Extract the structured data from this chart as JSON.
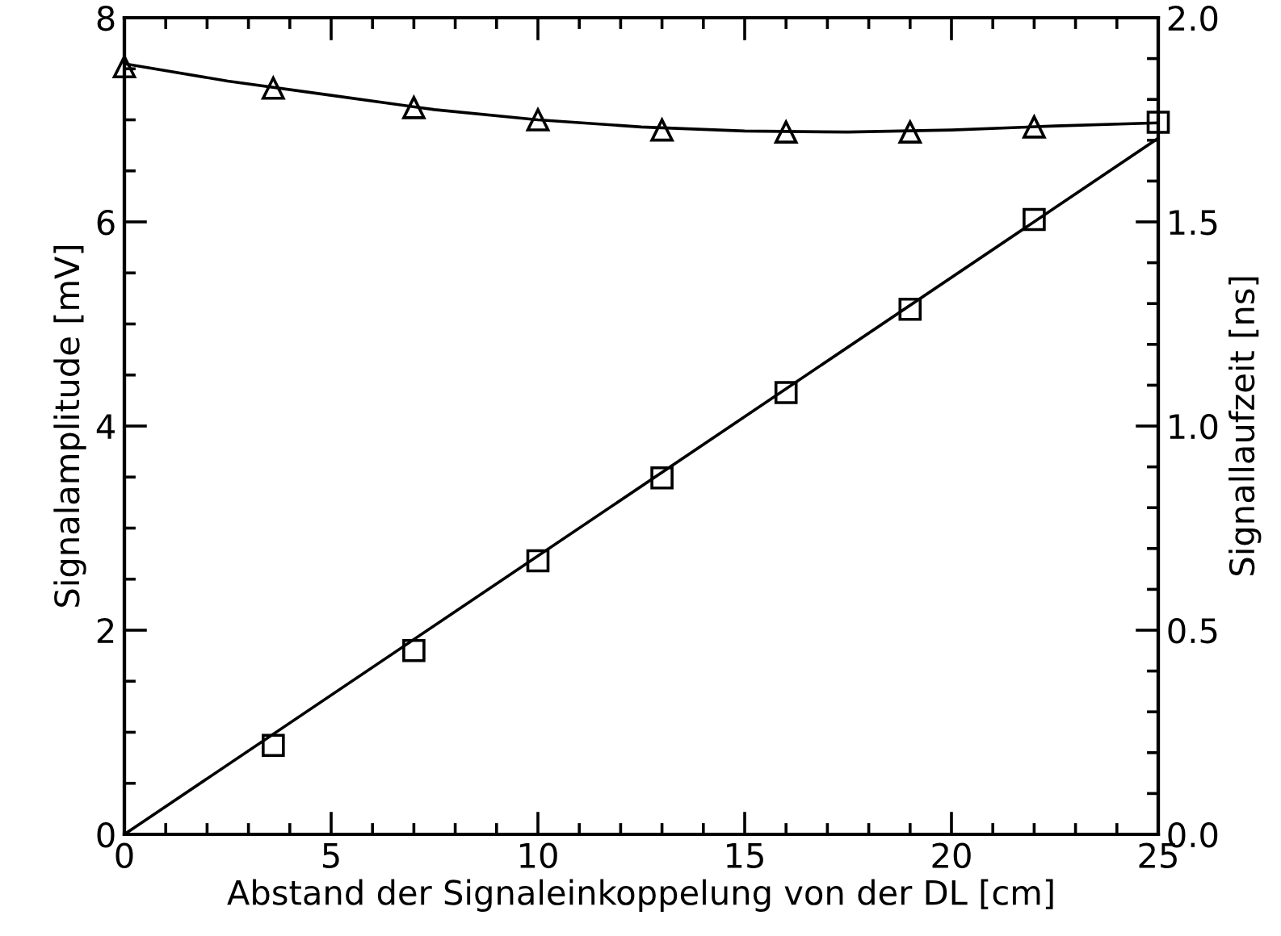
{
  "chart_data": {
    "type": "scatter",
    "xlabel": "Abstand der Signaleinkoppelung von der DL [cm]",
    "ylabel": "Signalamplitude [mV]",
    "y2label": "Signallaufzeit [ns]",
    "xlim": [
      0,
      25
    ],
    "xticks": [
      0,
      5,
      10,
      15,
      20,
      25
    ],
    "ylim": [
      0,
      8
    ],
    "yticks": [
      0,
      2,
      4,
      6,
      8
    ],
    "y2lim": [
      0,
      2
    ],
    "y2ticks": [
      {
        "value": 0,
        "label": "0.0"
      },
      {
        "value": 0.5,
        "label": "0.5"
      },
      {
        "value": 1,
        "label": "1.0"
      },
      {
        "value": 1.5,
        "label": "1.5"
      },
      {
        "value": 2,
        "label": "2.0"
      }
    ],
    "grid": false,
    "legend": false,
    "series": [
      {
        "color": "#000000",
        "marker": "triangle",
        "x": [
          0,
          3.6,
          7.0,
          10.0,
          13.0,
          16.0,
          19.0,
          22.0
        ],
        "values": [
          7.52,
          7.31,
          7.12,
          7.0,
          6.9,
          6.88,
          6.88,
          6.93
        ]
      },
      {
        "type": "line",
        "color": "#000000",
        "marker": "none",
        "line_style": "solid",
        "x": [
          0,
          2.5,
          5,
          7.5,
          10,
          12.5,
          15,
          17.5,
          20,
          22.5,
          25
        ],
        "values": [
          7.55,
          7.38,
          7.24,
          7.1,
          7.0,
          6.93,
          6.89,
          6.88,
          6.9,
          6.94,
          6.97
        ]
      },
      {
        "color": "#000000",
        "marker": "square",
        "axis": "y2",
        "x": [
          3.6,
          7.0,
          10.0,
          13.0,
          16.0,
          19.0,
          22.0,
          25.0
        ],
        "values": [
          0.218,
          0.45,
          0.67,
          0.873,
          1.082,
          1.286,
          1.506,
          1.744
        ]
      },
      {
        "type": "line",
        "color": "#000000",
        "marker": "none",
        "line_style": "solid",
        "axis": "y2",
        "x": [
          0,
          25
        ],
        "values": [
          0,
          1.705
        ]
      }
    ]
  }
}
